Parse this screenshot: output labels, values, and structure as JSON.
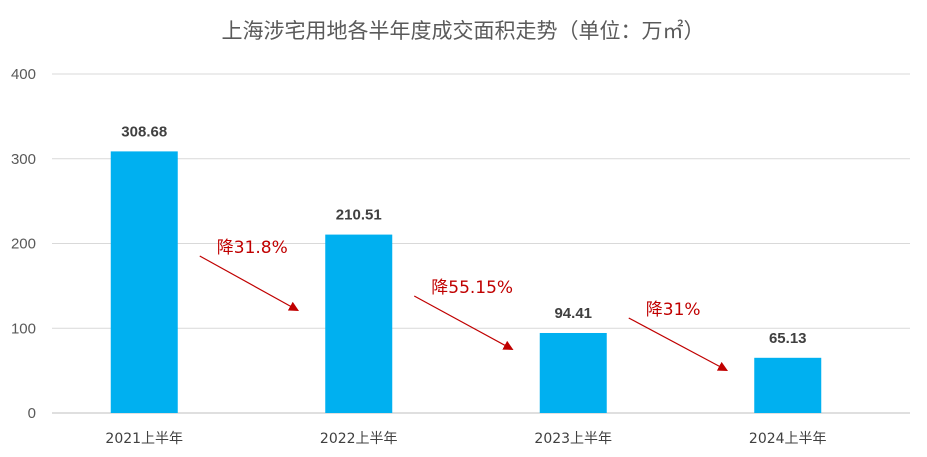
{
  "chart_data": {
    "type": "bar",
    "title": "上海涉宅用地各半年度成交面积走势（单位：万㎡）",
    "categories": [
      "2021上半年",
      "2022上半年",
      "2023上半年",
      "2024上半年"
    ],
    "values": [
      308.68,
      210.51,
      94.41,
      65.13
    ],
    "value_labels": [
      "308.68",
      "210.51",
      "94.41",
      "65.13"
    ],
    "ylim": [
      0,
      400
    ],
    "yticks": [
      0,
      100,
      200,
      300,
      400
    ],
    "xlabel": "",
    "ylabel": "",
    "grid": true,
    "legend": "none",
    "bar_color": "#00b0f0",
    "annotations": [
      {
        "text": "降31.8%",
        "from_index": 0,
        "to_index": 1,
        "color": "#c00000"
      },
      {
        "text": "降55.15%",
        "from_index": 1,
        "to_index": 2,
        "color": "#c00000"
      },
      {
        "text": "降31%",
        "from_index": 2,
        "to_index": 3,
        "color": "#c00000"
      }
    ]
  }
}
